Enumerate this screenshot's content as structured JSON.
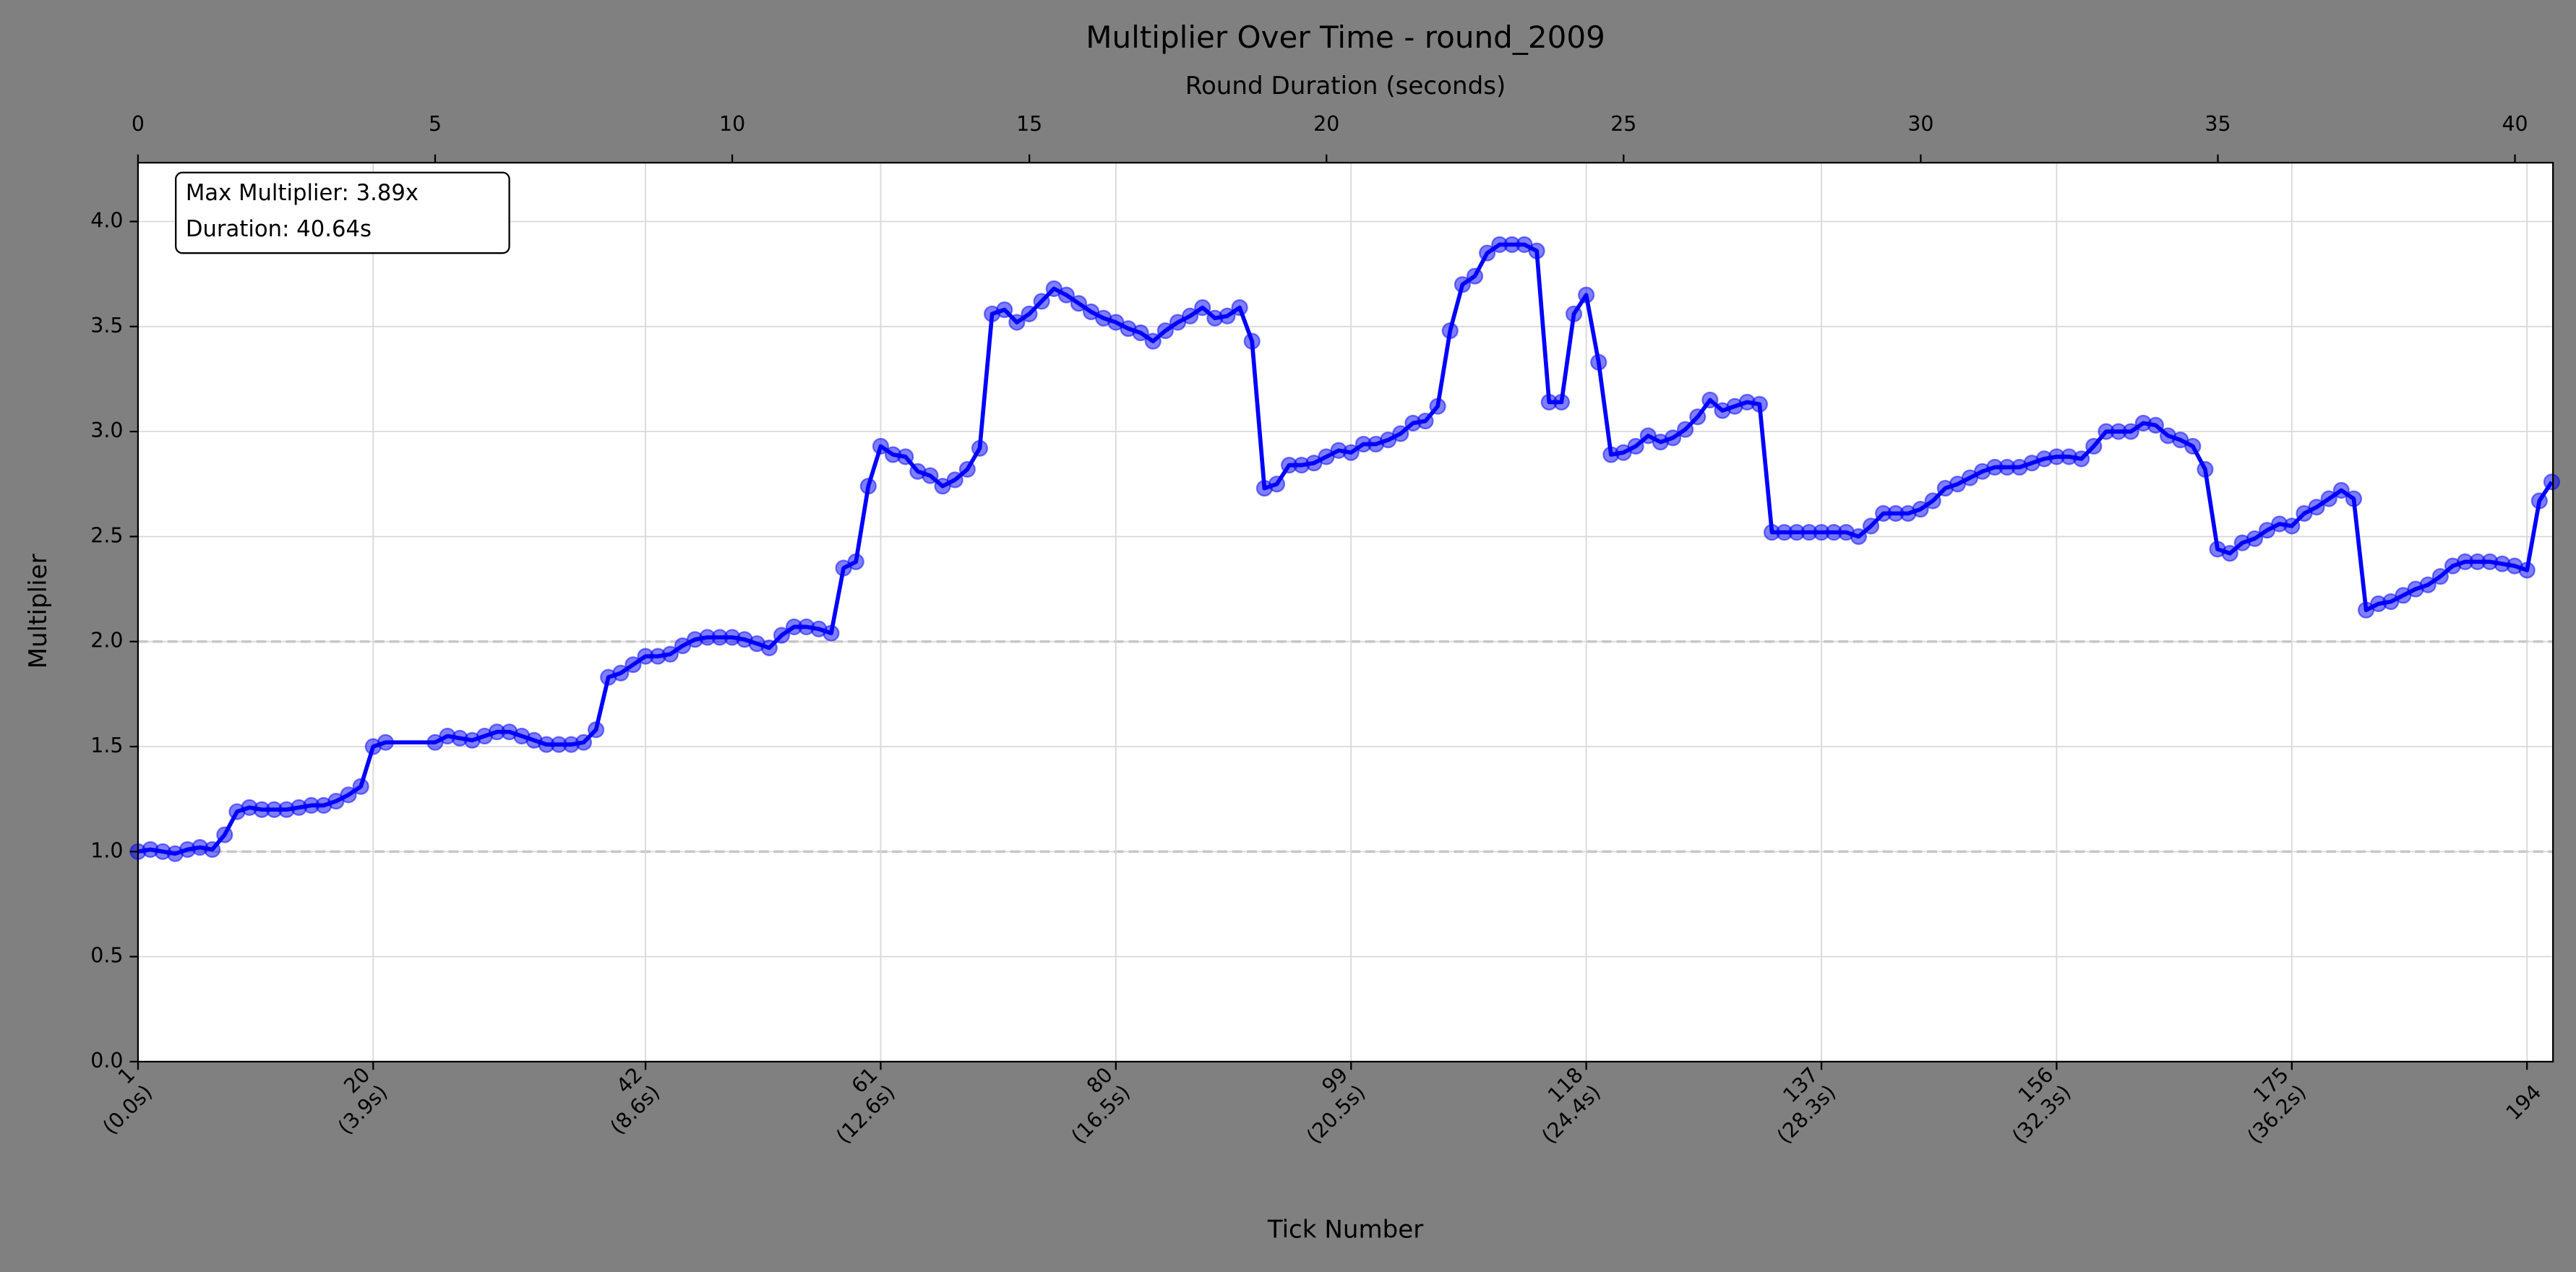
{
  "chart_data": {
    "type": "line",
    "title": "Multiplier Over Time - round_2009",
    "xlabel": "Tick Number",
    "ylabel": "Multiplier",
    "x2label": "Round Duration (seconds)",
    "annotation": [
      "Max Multiplier: 3.89x",
      "Duration: 40.64s"
    ],
    "color": "#0000ff",
    "grid": true,
    "reference_lines": [
      1,
      2
    ],
    "xlim": [
      1,
      196.1
    ],
    "xticks": [
      {
        "value": 1,
        "label": "1\n(0.0s)"
      },
      {
        "value": 20,
        "label": "20\n(3.9s)"
      },
      {
        "value": 42,
        "label": "42\n(8.6s)"
      },
      {
        "value": 61,
        "label": "61\n(12.6s)"
      },
      {
        "value": 80,
        "label": "80\n(16.5s)"
      },
      {
        "value": 99,
        "label": "99\n(20.5s)"
      },
      {
        "value": 118,
        "label": "118\n(24.4s)"
      },
      {
        "value": 137,
        "label": "137\n(28.3s)"
      },
      {
        "value": 156,
        "label": "156\n(32.3s)"
      },
      {
        "value": 175,
        "label": "175\n(36.2s)"
      },
      194
    ],
    "x2lim": [
      0,
      40.64
    ],
    "x2ticks": [
      0,
      5,
      10,
      15,
      20,
      25,
      30,
      35,
      40
    ],
    "ylim": [
      0,
      4.28
    ],
    "yticks": [
      {
        "value": 0,
        "label": "0.0"
      },
      0.5,
      {
        "value": 1,
        "label": "1.0"
      },
      1.5,
      {
        "value": 2,
        "label": "2.0"
      },
      2.5,
      {
        "value": 3,
        "label": "3.0"
      },
      3.5,
      {
        "value": 4,
        "label": "4.0"
      }
    ],
    "x": [
      1,
      2,
      3,
      4,
      5,
      6,
      7,
      8,
      9,
      10,
      11,
      12,
      13,
      14,
      15,
      16,
      17,
      18,
      19,
      20,
      21,
      25,
      26,
      27,
      28,
      29,
      30,
      31,
      32,
      33,
      34,
      35,
      36,
      37,
      38,
      39,
      40,
      41,
      42,
      43,
      44,
      45,
      46,
      47,
      48,
      49,
      50,
      51,
      52,
      53,
      54,
      55,
      56,
      57,
      58,
      59,
      60,
      61,
      62,
      63,
      64,
      65,
      66,
      67,
      68,
      69,
      70,
      71,
      72,
      73,
      74,
      75,
      76,
      77,
      78,
      79,
      80,
      81,
      82,
      83,
      84,
      85,
      86,
      87,
      88,
      89,
      90,
      91,
      92,
      93,
      94,
      95,
      96,
      97,
      98,
      99,
      100,
      101,
      102,
      103,
      104,
      105,
      106,
      107,
      108,
      109,
      110,
      111,
      112,
      113,
      114,
      115,
      116,
      117,
      118,
      119,
      120,
      121,
      122,
      123,
      124,
      125,
      126,
      127,
      128,
      129,
      130,
      131,
      132,
      133,
      134,
      135,
      136,
      137,
      138,
      139,
      140,
      141,
      142,
      143,
      144,
      145,
      146,
      147,
      148,
      149,
      150,
      151,
      152,
      153,
      154,
      155,
      156,
      157,
      158,
      159,
      160,
      161,
      162,
      163,
      164,
      165,
      166,
      167,
      168,
      169,
      170,
      171,
      172,
      173,
      174,
      175,
      176,
      177,
      178,
      179,
      180,
      181,
      182,
      183,
      184,
      185,
      186,
      187,
      188,
      189,
      190,
      191,
      192,
      193,
      194,
      195,
      196
    ],
    "values": [
      1.0,
      1.01,
      1.0,
      0.99,
      1.01,
      1.02,
      1.01,
      1.08,
      1.19,
      1.21,
      1.2,
      1.2,
      1.2,
      1.21,
      1.22,
      1.22,
      1.24,
      1.27,
      1.31,
      1.5,
      1.52,
      1.52,
      1.55,
      1.54,
      1.53,
      1.55,
      1.57,
      1.57,
      1.55,
      1.53,
      1.51,
      1.51,
      1.51,
      1.52,
      1.58,
      1.83,
      1.85,
      1.89,
      1.93,
      1.93,
      1.94,
      1.98,
      2.01,
      2.02,
      2.02,
      2.02,
      2.01,
      1.99,
      1.97,
      2.03,
      2.07,
      2.07,
      2.06,
      2.04,
      2.35,
      2.38,
      2.74,
      2.93,
      2.89,
      2.88,
      2.81,
      2.79,
      2.74,
      2.77,
      2.82,
      2.92,
      3.56,
      3.58,
      3.52,
      3.56,
      3.62,
      3.68,
      3.65,
      3.61,
      3.57,
      3.54,
      3.52,
      3.49,
      3.47,
      3.43,
      3.48,
      3.52,
      3.55,
      3.59,
      3.54,
      3.55,
      3.59,
      3.43,
      2.73,
      2.75,
      2.84,
      2.84,
      2.85,
      2.88,
      2.91,
      2.9,
      2.94,
      2.94,
      2.96,
      2.99,
      3.04,
      3.05,
      3.12,
      3.48,
      3.7,
      3.74,
      3.85,
      3.89,
      3.89,
      3.89,
      3.86,
      3.14,
      3.14,
      3.56,
      3.65,
      3.33,
      2.89,
      2.9,
      2.93,
      2.98,
      2.95,
      2.97,
      3.01,
      3.07,
      3.15,
      3.1,
      3.12,
      3.14,
      3.13,
      2.52,
      2.52,
      2.52,
      2.52,
      2.52,
      2.52,
      2.52,
      2.5,
      2.55,
      2.61,
      2.61,
      2.61,
      2.63,
      2.67,
      2.73,
      2.75,
      2.78,
      2.81,
      2.83,
      2.83,
      2.83,
      2.85,
      2.87,
      2.88,
      2.88,
      2.87,
      2.93,
      3.0,
      3.0,
      3.0,
      3.04,
      3.03,
      2.98,
      2.96,
      2.93,
      2.82,
      2.44,
      2.42,
      2.47,
      2.49,
      2.53,
      2.56,
      2.55,
      2.61,
      2.64,
      2.68,
      2.72,
      2.68,
      2.15,
      2.18,
      2.19,
      2.22,
      2.25,
      2.27,
      2.31,
      2.36,
      2.38,
      2.38,
      2.38,
      2.37,
      2.36,
      2.34,
      2.67,
      2.76
    ]
  }
}
